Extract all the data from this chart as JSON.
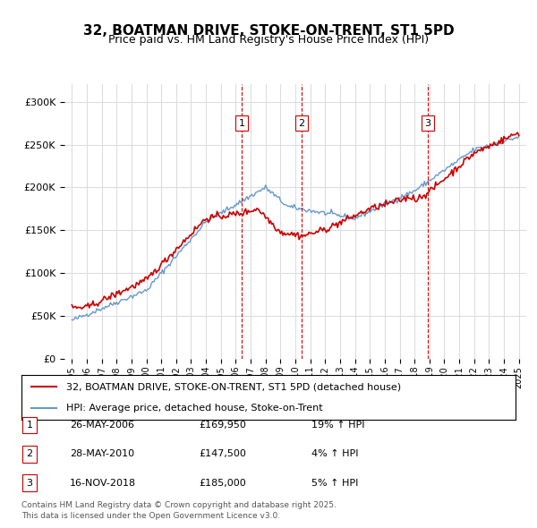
{
  "title": "32, BOATMAN DRIVE, STOKE-ON-TRENT, ST1 5PD",
  "subtitle": "Price paid vs. HM Land Registry's House Price Index (HPI)",
  "legend_line1": "32, BOATMAN DRIVE, STOKE-ON-TRENT, ST1 5PD (detached house)",
  "legend_line2": "HPI: Average price, detached house, Stoke-on-Trent",
  "footer": "Contains HM Land Registry data © Crown copyright and database right 2025.\nThis data is licensed under the Open Government Licence v3.0.",
  "transactions": [
    {
      "num": 1,
      "date": "26-MAY-2006",
      "price": "£169,950",
      "pct": "19% ↑ HPI",
      "x": 2006.4
    },
    {
      "num": 2,
      "date": "28-MAY-2010",
      "price": "£147,500",
      "pct": "4% ↑ HPI",
      "x": 2010.4
    },
    {
      "num": 3,
      "date": "16-NOV-2018",
      "price": "£185,000",
      "pct": "5% ↑ HPI",
      "x": 2018.88
    }
  ],
  "red_color": "#cc0000",
  "blue_color": "#6699cc",
  "vline_color": "#cc0000",
  "grid_color": "#dddddd",
  "bg_color": "#ffffff",
  "ylim": [
    0,
    320000
  ],
  "xlim_start": 1994.5,
  "xlim_end": 2025.5
}
